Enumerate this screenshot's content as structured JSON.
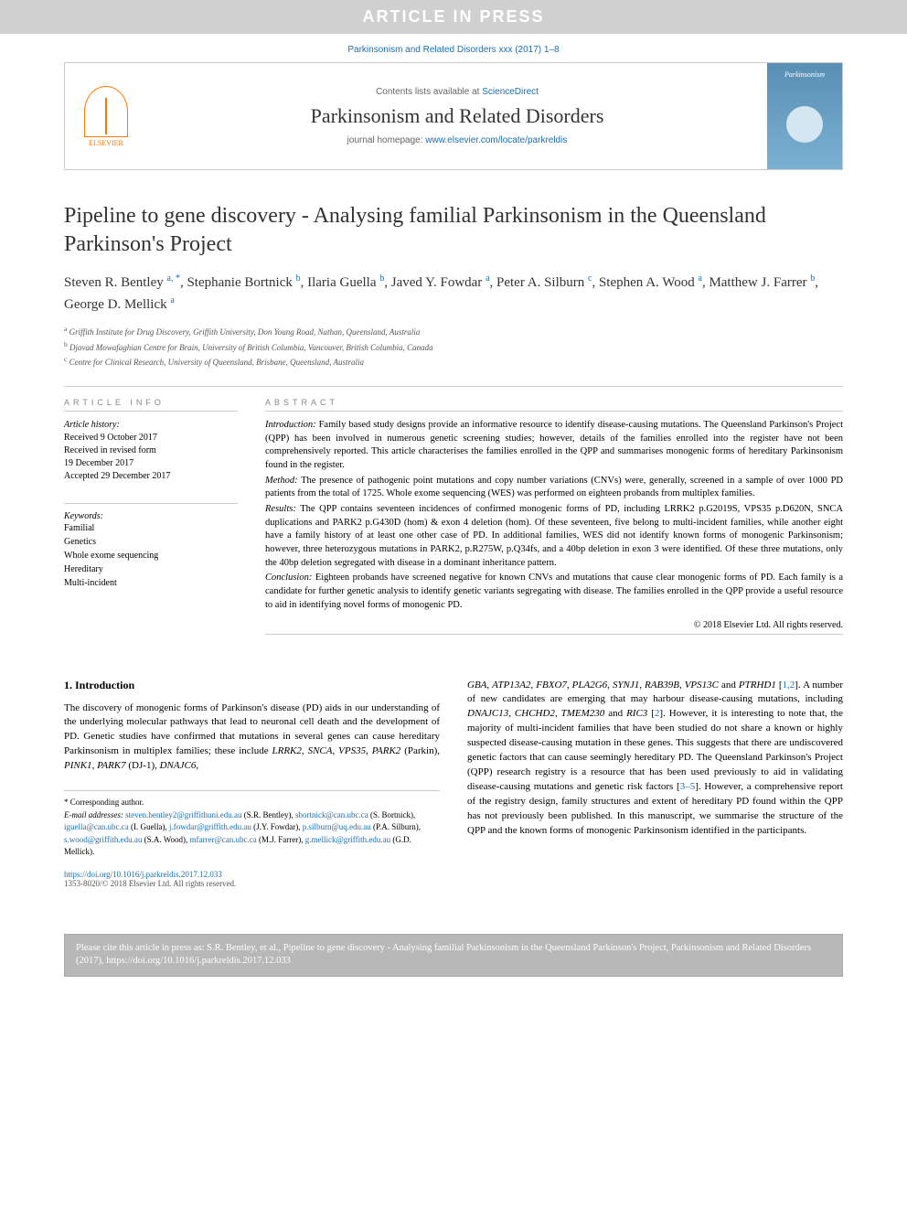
{
  "banner": {
    "text": "ARTICLE IN PRESS"
  },
  "journal_ref": "Parkinsonism and Related Disorders xxx (2017) 1–8",
  "header": {
    "elsevier_label": "ELSEVIER",
    "contents_prefix": "Contents lists available at ",
    "contents_link": "ScienceDirect",
    "journal_name": "Parkinsonism and Related Disorders",
    "homepage_prefix": "journal homepage: ",
    "homepage_link": "www.elsevier.com/locate/parkreldis",
    "cover_text": "Parkinsonism"
  },
  "title": "Pipeline to gene discovery - Analysing familial Parkinsonism in the Queensland Parkinson's Project",
  "authors_html": "Steven R. Bentley <sup>a, *</sup>, Stephanie Bortnick <sup>b</sup>, Ilaria Guella <sup>b</sup>, Javed Y. Fowdar <sup>a</sup>, Peter A. Silburn <sup>c</sup>, Stephen A. Wood <sup>a</sup>, Matthew J. Farrer <sup>b</sup>, George D. Mellick <sup>a</sup>",
  "affiliations": [
    "a Griffith Institute for Drug Discovery, Griffith University, Don Young Road, Nathan, Queensland, Australia",
    "b Djavad Mowafaghian Centre for Brain, University of British Columbia, Vancouver, British Columbia, Canada",
    "c Centre for Clinical Research, University of Queensland, Brisbane, Queensland, Australia"
  ],
  "article_info": {
    "heading": "ARTICLE INFO",
    "history_label": "Article history:",
    "history": [
      "Received 9 October 2017",
      "Received in revised form",
      "19 December 2017",
      "Accepted 29 December 2017"
    ],
    "keywords_label": "Keywords:",
    "keywords": [
      "Familial",
      "Genetics",
      "Whole exome sequencing",
      "Hereditary",
      "Multi-incident"
    ]
  },
  "abstract": {
    "heading": "ABSTRACT",
    "paragraphs": [
      {
        "label": "Introduction:",
        "text": " Family based study designs provide an informative resource to identify disease-causing mutations. The Queensland Parkinson's Project (QPP) has been involved in numerous genetic screening studies; however, details of the families enrolled into the register have not been comprehensively reported. This article characterises the families enrolled in the QPP and summarises monogenic forms of hereditary Parkinsonism found in the register."
      },
      {
        "label": "Method:",
        "text": " The presence of pathogenic point mutations and copy number variations (CNVs) were, generally, screened in a sample of over 1000 PD patients from the total of 1725. Whole exome sequencing (WES) was performed on eighteen probands from multiplex families."
      },
      {
        "label": "Results:",
        "text": " The QPP contains seventeen incidences of confirmed monogenic forms of PD, including LRRK2 p.G2019S, VPS35 p.D620N, SNCA duplications and PARK2 p.G430D (hom) & exon 4 deletion (hom). Of these seventeen, five belong to multi-incident families, while another eight have a family history of at least one other case of PD. In additional families, WES did not identify known forms of monogenic Parkinsonism; however, three heterozygous mutations in PARK2, p.R275W, p.Q34fs, and a 40bp deletion in exon 3 were identified. Of these three mutations, only the 40bp deletion segregated with disease in a dominant inheritance pattern."
      },
      {
        "label": "Conclusion:",
        "text": " Eighteen probands have screened negative for known CNVs and mutations that cause clear monogenic forms of PD. Each family is a candidate for further genetic analysis to identify genetic variants segregating with disease. The families enrolled in the QPP provide a useful resource to aid in identifying novel forms of monogenic PD."
      }
    ],
    "copyright": "© 2018 Elsevier Ltd. All rights reserved."
  },
  "intro": {
    "heading": "1. Introduction",
    "col1": "The discovery of monogenic forms of Parkinson's disease (PD) aids in our understanding of the underlying molecular pathways that lead to neuronal cell death and the development of PD. Genetic studies have confirmed that mutations in several genes can cause hereditary Parkinsonism in multiplex families; these include <em>LRRK2</em>, <em>SNCA</em>, <em>VPS35</em>, <em>PARK2</em> (Parkin), <em>PINK1</em>, <em>PARK7</em> (DJ-1), <em>DNAJC6</em>,",
    "col2": "<em>GBA</em>, <em>ATP13A2</em>, <em>FBXO7</em>, <em>PLA2G6</em>, <em>SYNJ1</em>, <em>RAB39B</em>, <em>VPS13C</em> and <em>PTRHD1</em> [<a href='#'>1,2</a>]. A number of new candidates are emerging that may harbour disease-causing mutations, including <em>DNAJC13</em>, <em>CHCHD2</em>, <em>TMEM230</em> and <em>RIC3</em> [<a href='#'>2</a>]. However, it is interesting to note that, the majority of multi-incident families that have been studied do not share a known or highly suspected disease-causing mutation in these genes. This suggests that there are undiscovered genetic factors that can cause seemingly hereditary PD. The Queensland Parkinson's Project (QPP) research registry is a resource that has been used previously to aid in validating disease-causing mutations and genetic risk factors [<a href='#'>3–5</a>]. However, a comprehensive report of the registry design, family structures and extent of hereditary PD found within the QPP has not previously been published. In this manuscript, we summarise the structure of the QPP and the known forms of monogenic Parkinsonism identified in the participants."
  },
  "footnotes": {
    "corresponding": "* Corresponding author.",
    "emails_label": "E-mail addresses:",
    "emails_html": "<a href='#'>steven.bentley2@griffithuni.edu.au</a> (S.R. Bentley), <a href='#'>sbortnick@can.ubc.ca</a> (S. Bortnick), <a href='#'>iguella@can.ubc.ca</a> (I. Guella), <a href='#'>j.fowdar@griffith.edu.au</a> (J.Y. Fowdar), <a href='#'>p.silburn@uq.edu.au</a> (P.A. Silburn), <a href='#'>s.wood@griffith.edu.au</a> (S.A. Wood), <a href='#'>mfarrer@can.ubc.ca</a> (M.J. Farrer), <a href='#'>g.mellick@griffith.edu.au</a> (G.D. Mellick)."
  },
  "doi": {
    "url": "https://doi.org/10.1016/j.parkreldis.2017.12.033",
    "copyright": "1353-8020/© 2018 Elsevier Ltd. All rights reserved."
  },
  "cite_box": "Please cite this article in press as: S.R. Bentley, et al., Pipeline to gene discovery - Analysing familial Parkinsonism in the Queensland Parkinson's Project, Parkinsonism and Related Disorders (2017), https://doi.org/10.1016/j.parkreldis.2017.12.033",
  "colors": {
    "link": "#1a6fb5",
    "banner_bg": "#d0d0d0",
    "banner_fg": "#ffffff",
    "citebox_bg": "#b8b8b8"
  }
}
